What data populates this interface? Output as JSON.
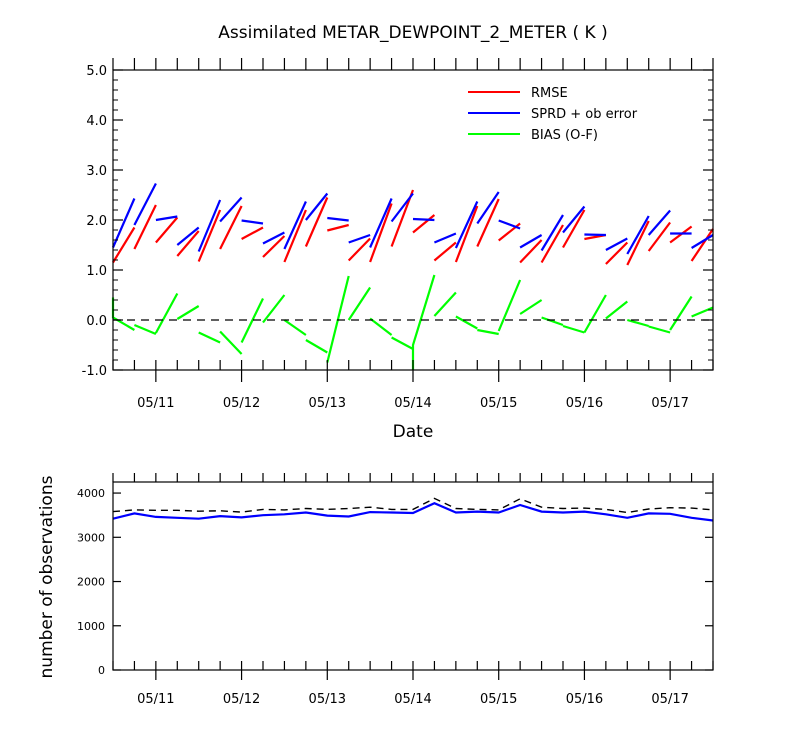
{
  "chart_data": [
    {
      "type": "line",
      "title": "Assimilated METAR_DEWPOINT_2_METER ( K )",
      "xlabel": "Date",
      "ylabel": "",
      "x_range": [
        "05/10 12Z",
        "05/17 12Z"
      ],
      "ylim": [
        -1.0,
        5.0
      ],
      "yticks": [
        "-1.0",
        "0.0",
        "1.0",
        "2.0",
        "3.0",
        "4.0",
        "5.0"
      ],
      "xticks": [
        "05/11",
        "05/12",
        "05/13",
        "05/14",
        "05/15",
        "05/16",
        "05/17"
      ],
      "legend_position": "top-right",
      "zero_line": "dashed",
      "series": [
        {
          "name": "RMSE",
          "color": "#ff0000",
          "segments": [
            [
              [
                0.0,
                1.15
              ],
              [
                0.25,
                1.85
              ]
            ],
            [
              [
                0.25,
                1.42
              ],
              [
                0.5,
                2.3
              ]
            ],
            [
              [
                0.5,
                1.55
              ],
              [
                0.75,
                2.05
              ]
            ],
            [
              [
                0.75,
                1.28
              ],
              [
                1.0,
                1.78
              ]
            ],
            [
              [
                1.0,
                1.17
              ],
              [
                1.25,
                2.2
              ]
            ],
            [
              [
                1.25,
                1.42
              ],
              [
                1.5,
                2.28
              ]
            ],
            [
              [
                1.5,
                1.62
              ],
              [
                1.75,
                1.85
              ]
            ],
            [
              [
                1.75,
                1.26
              ],
              [
                2.0,
                1.68
              ]
            ],
            [
              [
                2.0,
                1.16
              ],
              [
                2.25,
                2.2
              ]
            ],
            [
              [
                2.25,
                1.47
              ],
              [
                2.5,
                2.45
              ]
            ],
            [
              [
                2.5,
                1.79
              ],
              [
                2.75,
                1.9
              ]
            ],
            [
              [
                2.75,
                1.19
              ],
              [
                3.0,
                1.63
              ]
            ],
            [
              [
                3.0,
                1.16
              ],
              [
                3.25,
                2.33
              ]
            ],
            [
              [
                3.25,
                1.47
              ],
              [
                3.5,
                2.6
              ]
            ],
            [
              [
                3.5,
                1.75
              ],
              [
                3.75,
                2.1
              ]
            ],
            [
              [
                3.75,
                1.19
              ],
              [
                4.0,
                1.55
              ]
            ],
            [
              [
                4.0,
                1.16
              ],
              [
                4.25,
                2.28
              ]
            ],
            [
              [
                4.25,
                1.47
              ],
              [
                4.5,
                2.42
              ]
            ],
            [
              [
                4.5,
                1.59
              ],
              [
                4.75,
                1.93
              ]
            ],
            [
              [
                4.75,
                1.15
              ],
              [
                5.0,
                1.6
              ]
            ],
            [
              [
                5.0,
                1.15
              ],
              [
                5.25,
                1.9
              ]
            ],
            [
              [
                5.25,
                1.45
              ],
              [
                5.5,
                2.2
              ]
            ],
            [
              [
                5.5,
                1.62
              ],
              [
                5.75,
                1.7
              ]
            ],
            [
              [
                5.75,
                1.12
              ],
              [
                6.0,
                1.55
              ]
            ],
            [
              [
                6.0,
                1.1
              ],
              [
                6.25,
                1.98
              ]
            ],
            [
              [
                6.25,
                1.38
              ],
              [
                6.5,
                1.95
              ]
            ],
            [
              [
                6.5,
                1.55
              ],
              [
                6.75,
                1.87
              ]
            ],
            [
              [
                6.75,
                1.18
              ],
              [
                7.0,
                1.82
              ]
            ]
          ]
        },
        {
          "name": "SPRD + ob error",
          "color": "#0000ff",
          "segments": [
            [
              [
                0.0,
                1.45
              ],
              [
                0.25,
                2.43
              ]
            ],
            [
              [
                0.25,
                1.9
              ],
              [
                0.5,
                2.73
              ]
            ],
            [
              [
                0.5,
                2.0
              ],
              [
                0.75,
                2.07
              ]
            ],
            [
              [
                0.75,
                1.5
              ],
              [
                1.0,
                1.85
              ]
            ],
            [
              [
                1.0,
                1.37
              ],
              [
                1.25,
                2.4
              ]
            ],
            [
              [
                1.25,
                1.97
              ],
              [
                1.5,
                2.45
              ]
            ],
            [
              [
                1.5,
                1.99
              ],
              [
                1.75,
                1.93
              ]
            ],
            [
              [
                1.75,
                1.53
              ],
              [
                2.0,
                1.75
              ]
            ],
            [
              [
                2.0,
                1.42
              ],
              [
                2.25,
                2.37
              ]
            ],
            [
              [
                2.25,
                2.0
              ],
              [
                2.5,
                2.53
              ]
            ],
            [
              [
                2.5,
                2.04
              ],
              [
                2.75,
                1.99
              ]
            ],
            [
              [
                2.75,
                1.55
              ],
              [
                3.0,
                1.7
              ]
            ],
            [
              [
                3.0,
                1.45
              ],
              [
                3.25,
                2.43
              ]
            ],
            [
              [
                3.25,
                1.97
              ],
              [
                3.5,
                2.53
              ]
            ],
            [
              [
                3.5,
                2.02
              ],
              [
                3.75,
                2.0
              ]
            ],
            [
              [
                3.75,
                1.55
              ],
              [
                4.0,
                1.73
              ]
            ],
            [
              [
                4.0,
                1.44
              ],
              [
                4.25,
                2.37
              ]
            ],
            [
              [
                4.25,
                1.93
              ],
              [
                4.5,
                2.56
              ]
            ],
            [
              [
                4.5,
                1.99
              ],
              [
                4.75,
                1.83
              ]
            ],
            [
              [
                4.75,
                1.45
              ],
              [
                5.0,
                1.7
              ]
            ],
            [
              [
                5.0,
                1.39
              ],
              [
                5.25,
                2.1
              ]
            ],
            [
              [
                5.25,
                1.75
              ],
              [
                5.5,
                2.27
              ]
            ],
            [
              [
                5.5,
                1.71
              ],
              [
                5.75,
                1.7
              ]
            ],
            [
              [
                5.75,
                1.4
              ],
              [
                6.0,
                1.63
              ]
            ],
            [
              [
                6.0,
                1.32
              ],
              [
                6.25,
                2.08
              ]
            ],
            [
              [
                6.25,
                1.7
              ],
              [
                6.5,
                2.19
              ]
            ],
            [
              [
                6.5,
                1.73
              ],
              [
                6.75,
                1.73
              ]
            ],
            [
              [
                6.75,
                1.44
              ],
              [
                7.0,
                1.7
              ]
            ]
          ]
        },
        {
          "name": "BIAS (O-F)",
          "color": "#00ff00",
          "segments": [
            [
              [
                0.0,
                0.45
              ],
              [
                0.0,
                0.05
              ],
              [
                0.25,
                -0.2
              ]
            ],
            [
              [
                0.25,
                -0.1
              ],
              [
                0.5,
                -0.28
              ]
            ],
            [
              [
                0.5,
                -0.26
              ],
              [
                0.75,
                0.53
              ]
            ],
            [
              [
                0.75,
                0.02
              ],
              [
                1.0,
                0.28
              ]
            ],
            [
              [
                1.0,
                -0.25
              ],
              [
                1.25,
                -0.45
              ]
            ],
            [
              [
                1.25,
                -0.23
              ],
              [
                1.5,
                -0.68
              ]
            ],
            [
              [
                1.5,
                -0.45
              ],
              [
                1.75,
                0.43
              ]
            ],
            [
              [
                1.75,
                -0.05
              ],
              [
                2.0,
                0.5
              ]
            ],
            [
              [
                2.0,
                0.0
              ],
              [
                2.25,
                -0.3
              ]
            ],
            [
              [
                2.25,
                -0.4
              ],
              [
                2.5,
                -0.65
              ]
            ],
            [
              [
                2.5,
                -0.85
              ],
              [
                2.75,
                0.88
              ]
            ],
            [
              [
                2.75,
                0.0
              ],
              [
                3.0,
                0.65
              ]
            ],
            [
              [
                3.0,
                0.03
              ],
              [
                3.25,
                -0.3
              ]
            ],
            [
              [
                3.25,
                -0.35
              ],
              [
                3.5,
                -0.58
              ]
            ],
            [
              [
                3.5,
                -1.0
              ],
              [
                3.5,
                -0.5
              ],
              [
                3.75,
                0.9
              ]
            ],
            [
              [
                3.75,
                0.08
              ],
              [
                4.0,
                0.55
              ]
            ],
            [
              [
                4.0,
                0.07
              ],
              [
                4.25,
                -0.17
              ]
            ],
            [
              [
                4.25,
                -0.2
              ],
              [
                4.5,
                -0.28
              ]
            ],
            [
              [
                4.5,
                -0.22
              ],
              [
                4.75,
                0.8
              ]
            ],
            [
              [
                4.75,
                0.12
              ],
              [
                5.0,
                0.4
              ]
            ],
            [
              [
                5.0,
                0.05
              ],
              [
                5.25,
                -0.1
              ]
            ],
            [
              [
                5.25,
                -0.12
              ],
              [
                5.5,
                -0.25
              ]
            ],
            [
              [
                5.5,
                -0.25
              ],
              [
                5.75,
                0.5
              ]
            ],
            [
              [
                5.75,
                0.03
              ],
              [
                6.0,
                0.37
              ]
            ],
            [
              [
                6.0,
                0.0
              ],
              [
                6.25,
                -0.12
              ]
            ],
            [
              [
                6.25,
                -0.13
              ],
              [
                6.5,
                -0.25
              ]
            ],
            [
              [
                6.5,
                -0.2
              ],
              [
                6.75,
                0.47
              ]
            ],
            [
              [
                6.75,
                0.07
              ],
              [
                7.0,
                0.25
              ]
            ]
          ]
        }
      ]
    },
    {
      "type": "line",
      "title": "",
      "xlabel": "",
      "ylabel": "number of observations",
      "ylim": [
        0,
        4250
      ],
      "yticks": [
        "0",
        "1000",
        "2000",
        "3000",
        "4000"
      ],
      "xticks": [
        "05/11",
        "05/12",
        "05/13",
        "05/14",
        "05/15",
        "05/16",
        "05/17"
      ],
      "x": [
        0.0,
        0.25,
        0.5,
        0.75,
        1.0,
        1.25,
        1.5,
        1.75,
        2.0,
        2.25,
        2.5,
        2.75,
        3.0,
        3.25,
        3.5,
        3.75,
        4.0,
        4.25,
        4.5,
        4.75,
        5.0,
        5.25,
        5.5,
        5.75,
        6.0,
        6.25,
        6.5,
        6.75,
        7.0
      ],
      "series": [
        {
          "style": "dashed",
          "color": "#000000",
          "values": [
            3580,
            3620,
            3610,
            3610,
            3590,
            3600,
            3570,
            3630,
            3620,
            3650,
            3630,
            3650,
            3680,
            3630,
            3630,
            3880,
            3650,
            3630,
            3620,
            3870,
            3680,
            3650,
            3660,
            3630,
            3560,
            3640,
            3670,
            3660,
            3620
          ]
        },
        {
          "style": "solid",
          "color": "#0000ff",
          "values": [
            3420,
            3540,
            3460,
            3440,
            3420,
            3480,
            3450,
            3500,
            3520,
            3560,
            3490,
            3470,
            3570,
            3560,
            3550,
            3770,
            3560,
            3580,
            3560,
            3730,
            3580,
            3560,
            3580,
            3520,
            3440,
            3540,
            3530,
            3440,
            3380
          ]
        }
      ]
    }
  ]
}
